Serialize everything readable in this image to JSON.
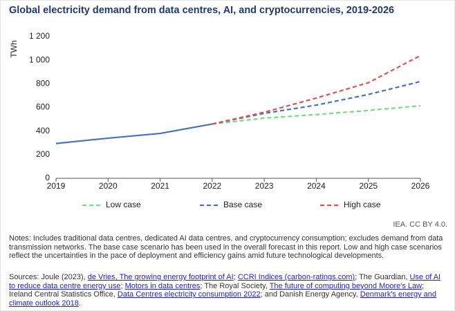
{
  "chart_data": {
    "type": "line",
    "title": "Global electricity demand from data centres, AI, and cryptocurrencies, 2019-2026",
    "y_label": "TWh",
    "x": [
      2019,
      2020,
      2021,
      2022,
      2023,
      2024,
      2025,
      2026
    ],
    "xlim": [
      2019,
      2026
    ],
    "xticks": [
      2019,
      2020,
      2021,
      2022,
      2023,
      2024,
      2025,
      2026
    ],
    "ylim": [
      0,
      1200
    ],
    "yticks": [
      0,
      200,
      400,
      600,
      800,
      {
        "value": 1000,
        "label": "1 000"
      },
      {
        "value": 1200,
        "label": "1 200"
      }
    ],
    "grid": false,
    "legend": "bottom",
    "series": [
      {
        "color": "#4472c4",
        "dashed": false,
        "values": [
          295,
          340,
          380,
          460,
          null,
          null,
          null,
          null
        ]
      },
      {
        "name": "Low case",
        "color": "#6ee07f",
        "dashed": true,
        "values": [
          null,
          null,
          null,
          460,
          510,
          540,
          575,
          615
        ]
      },
      {
        "name": "Base case",
        "color": "#4472c4",
        "dashed": true,
        "values": [
          null,
          null,
          null,
          460,
          550,
          620,
          710,
          820
        ]
      },
      {
        "name": "High case",
        "color": "#e05252",
        "dashed": true,
        "values": [
          null,
          null,
          null,
          460,
          560,
          680,
          810,
          1040
        ]
      }
    ]
  },
  "credit": "IEA. CC BY 4.0.",
  "notes": "Notes: Includes traditional data centres, dedicated AI data centres, and cryptocurrency consumption; excludes demand from data transmission networks. The base case scenario has been used in the overall forecast in this report. Low and high case scenarios reflect the uncertainties in the pace of deployment and efficiency gains amid future technological developments.",
  "sources": [
    {
      "text": "Sources: Joule (2023), ",
      "link": false
    },
    {
      "text": "de Vries, The growing energy footprint of AI",
      "link": true
    },
    {
      "text": "; ",
      "link": false
    },
    {
      "text": "CCRI Indices (carbon-ratings.com)",
      "link": true
    },
    {
      "text": "; The Guardian, ",
      "link": false
    },
    {
      "text": "Use of AI to reduce data centre energy use",
      "link": true
    },
    {
      "text": "; ",
      "link": false
    },
    {
      "text": "Motors in data centres",
      "link": true
    },
    {
      "text": "; The Royal Society, ",
      "link": false
    },
    {
      "text": "The future of computing beyond Moore's Law",
      "link": true
    },
    {
      "text": "; Ireland Central Statistics Office, ",
      "link": false
    },
    {
      "text": "Data Centres electricity consumption 2022",
      "link": true
    },
    {
      "text": "; and Danish Energy Agency, ",
      "link": false
    },
    {
      "text": "Denmark's energy and climate outlook 2018",
      "link": true
    },
    {
      "text": ".",
      "link": false
    }
  ]
}
